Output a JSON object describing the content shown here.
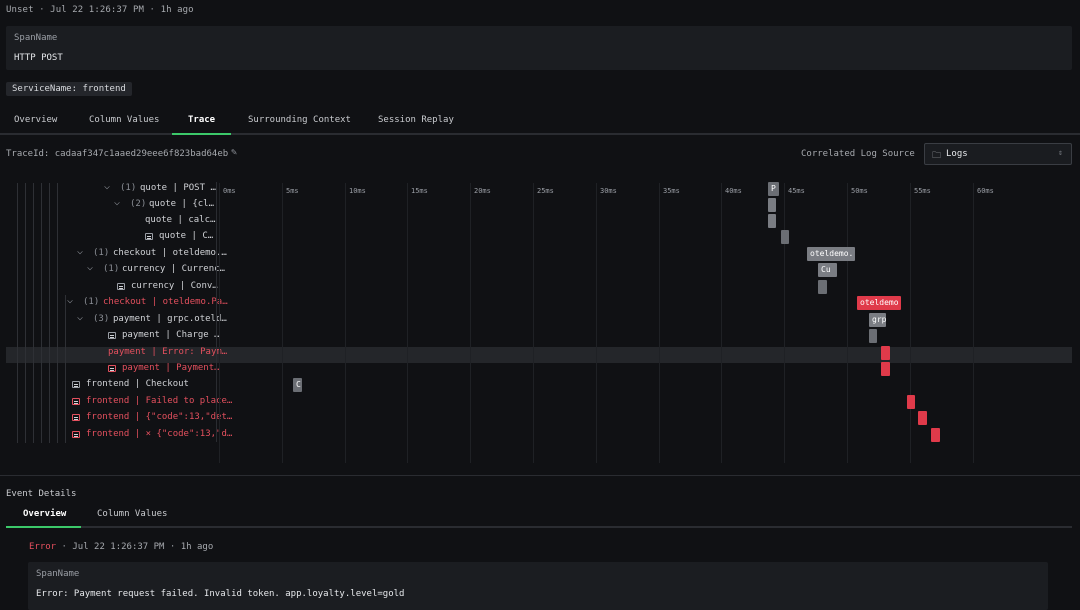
{
  "header": {
    "status": "Unset",
    "timestamp": "Jul 22 1:26:37 PM",
    "relative": "1h ago",
    "span_label": "SpanName",
    "span_value": "HTTP POST",
    "service_badge": "ServiceName: frontend"
  },
  "tabs": [
    "Overview",
    "Column Values",
    "Trace",
    "Surrounding Context",
    "Session Replay"
  ],
  "active_tab": "Trace",
  "trace": {
    "trace_id_text": "TraceId: cadaaf347c1aaed29eee6f823bad64eb",
    "correlated_label": "Correlated Log Source",
    "log_source_value": "Logs",
    "ticks": [
      "0ms",
      "5ms",
      "10ms",
      "15ms",
      "20ms",
      "25ms",
      "30ms",
      "35ms",
      "40ms",
      "45ms",
      "50ms",
      "55ms",
      "60ms"
    ],
    "rows": [
      {
        "label": "quote | POST …",
        "count": "(1)",
        "chevron": true,
        "error": false
      },
      {
        "label": "quote | {cl…",
        "count": "(2)",
        "chevron": true,
        "error": false
      },
      {
        "label": "quote | calc…",
        "count": "",
        "chevron": false,
        "error": false
      },
      {
        "label": "quote | C…",
        "count": "",
        "chevron": false,
        "log": true,
        "error": false
      },
      {
        "label": "checkout | oteldemo.…",
        "count": "(1)",
        "chevron": true,
        "error": false
      },
      {
        "label": "currency | Currenc…",
        "count": "(1)",
        "chevron": true,
        "error": false
      },
      {
        "label": "currency | Conv…",
        "count": "",
        "chevron": false,
        "log": true,
        "error": false
      },
      {
        "label": "checkout | oteldemo.Pa…",
        "count": "(1)",
        "chevron": true,
        "error": true
      },
      {
        "label": "payment | grpc.oteld…",
        "count": "(3)",
        "chevron": true,
        "error": false
      },
      {
        "label": "payment | Charge …",
        "count": "",
        "chevron": false,
        "log": true,
        "error": false
      },
      {
        "label": "payment | Error: Paym…",
        "count": "",
        "chevron": false,
        "error": true
      },
      {
        "label": "payment | Payment…",
        "count": "",
        "chevron": false,
        "log": true,
        "error": true
      },
      {
        "label": "frontend | Checkout",
        "count": "",
        "chevron": false,
        "log": true,
        "error": false
      },
      {
        "label": "frontend | Failed to place…",
        "count": "",
        "chevron": false,
        "log": true,
        "error": true
      },
      {
        "label": "frontend | {\"code\":13,\"det…",
        "count": "",
        "chevron": false,
        "log": true,
        "error": true
      },
      {
        "label": "frontend | × {\"code\":13,\"d…",
        "count": "",
        "chevron": false,
        "log": true,
        "error": true
      }
    ],
    "bar_labels": {
      "r0": "P",
      "r4": "oteldemo.",
      "r5": "Cu",
      "r7": "oteldemo",
      "r8": "grp",
      "r12": "C"
    }
  },
  "event": {
    "title": "Event Details",
    "tabs": [
      "Overview",
      "Column Values"
    ],
    "active_tab": "Overview",
    "status": "Error",
    "timestamp": "Jul 22 1:26:37 PM",
    "relative": "1h ago",
    "span_label": "SpanName",
    "span_value": "Error: Payment request failed. Invalid token. app.loyalty.level=gold"
  }
}
